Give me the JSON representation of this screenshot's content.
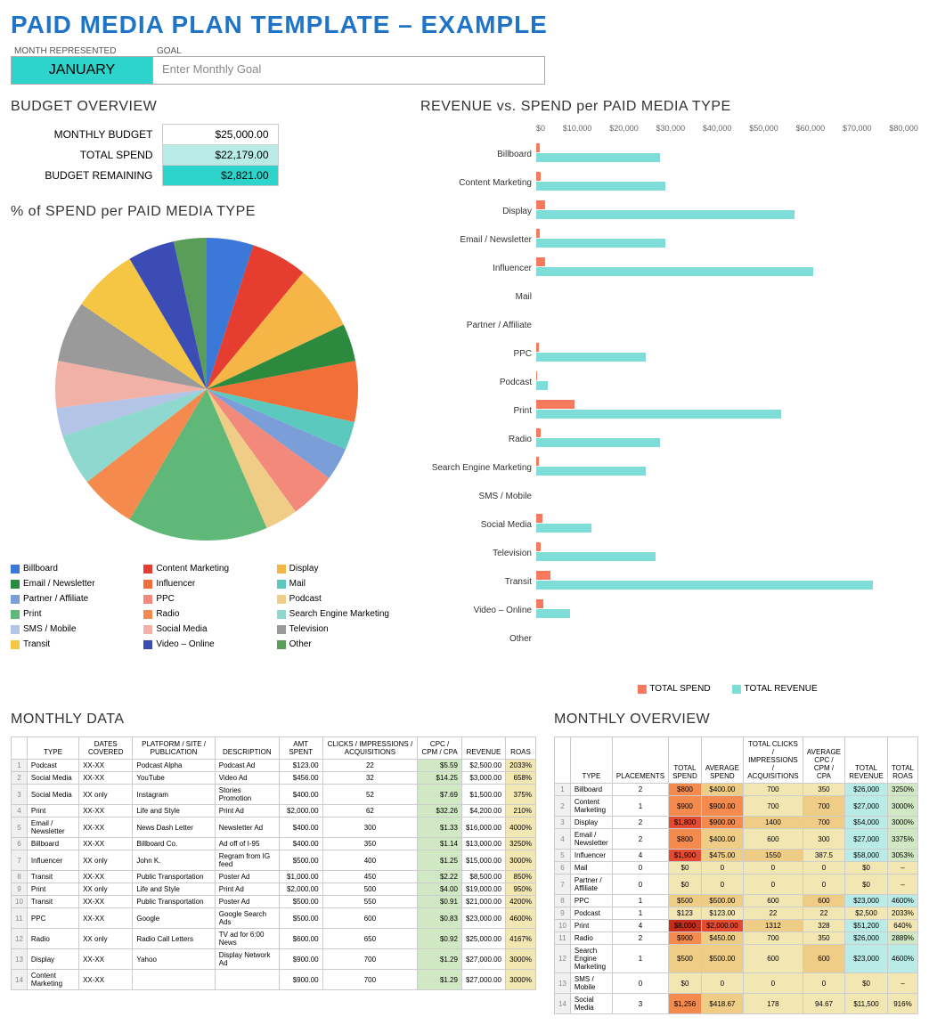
{
  "title": "PAID MEDIA PLAN TEMPLATE  –  EXAMPLE",
  "header": {
    "month_label": "MONTH REPRESENTED",
    "goal_label": "GOAL",
    "month": "JANUARY",
    "goal_placeholder": "Enter Monthly Goal"
  },
  "budget": {
    "title": "BUDGET OVERVIEW",
    "rows": [
      {
        "label": "MONTHLY BUDGET",
        "value": "$25,000.00",
        "bg": "#ffffff"
      },
      {
        "label": "TOTAL SPEND",
        "value": "$22,179.00",
        "bg": "#b9ece7"
      },
      {
        "label": "BUDGET REMAINING",
        "value": "$2,821.00",
        "bg": "#2dd4cc"
      }
    ]
  },
  "pie": {
    "title": "% of SPEND per PAID MEDIA TYPE",
    "slices": [
      {
        "label": "Billboard",
        "value": 5.0,
        "color": "#3b78d8"
      },
      {
        "label": "Content Marketing",
        "value": 6.0,
        "color": "#e53e30"
      },
      {
        "label": "Display",
        "value": 7.0,
        "color": "#f5b547"
      },
      {
        "label": "Email / Newsletter",
        "value": 4.0,
        "color": "#2b8a3e"
      },
      {
        "label": "Influencer",
        "value": 6.5,
        "color": "#f36f3a"
      },
      {
        "label": "Mail",
        "value": 3.0,
        "color": "#5cc9bf"
      },
      {
        "label": "Partner / Affiliate",
        "value": 3.5,
        "color": "#7b9ed9"
      },
      {
        "label": "PPC",
        "value": 5.0,
        "color": "#f2897a"
      },
      {
        "label": "Podcast",
        "value": 3.5,
        "color": "#f0cd87"
      },
      {
        "label": "Print",
        "value": 15.0,
        "color": "#5fb878"
      },
      {
        "label": "Radio",
        "value": 6.0,
        "color": "#f58a4e"
      },
      {
        "label": "Search Engine Marketing",
        "value": 5.5,
        "color": "#8fd8d0"
      },
      {
        "label": "SMS / Mobile",
        "value": 3.0,
        "color": "#b3c4e6"
      },
      {
        "label": "Social Media",
        "value": 5.0,
        "color": "#f2b1a6"
      },
      {
        "label": "Television",
        "value": 6.5,
        "color": "#9a9a9a"
      },
      {
        "label": "Transit",
        "value": 7.0,
        "color": "#f5c544"
      },
      {
        "label": "Video – Online",
        "value": 5.0,
        "color": "#3b4db5"
      },
      {
        "label": "Other",
        "value": 3.5,
        "color": "#5a9c5a"
      }
    ]
  },
  "revspend": {
    "title": "REVENUE vs. SPEND per PAID MEDIA TYPE",
    "xmax": 80000,
    "xticks": [
      "$0",
      "$10,000",
      "$20,000",
      "$30,000",
      "$40,000",
      "$50,000",
      "$60,000",
      "$70,000",
      "$80,000"
    ],
    "legend": [
      "TOTAL SPEND",
      "TOTAL REVENUE"
    ],
    "spend_color": "#f77a5c",
    "revenue_color": "#7eddd6",
    "rows": [
      {
        "cat": "Billboard",
        "spend": 800,
        "revenue": 26000
      },
      {
        "cat": "Content Marketing",
        "spend": 900,
        "revenue": 27000
      },
      {
        "cat": "Display",
        "spend": 1800,
        "revenue": 54000
      },
      {
        "cat": "Email / Newsletter",
        "spend": 800,
        "revenue": 27000
      },
      {
        "cat": "Influencer",
        "spend": 1900,
        "revenue": 58000
      },
      {
        "cat": "Mail",
        "spend": 0,
        "revenue": 0
      },
      {
        "cat": "Partner / Affiliate",
        "spend": 0,
        "revenue": 0
      },
      {
        "cat": "PPC",
        "spend": 500,
        "revenue": 23000
      },
      {
        "cat": "Podcast",
        "spend": 123,
        "revenue": 2500
      },
      {
        "cat": "Print",
        "spend": 8000,
        "revenue": 51200
      },
      {
        "cat": "Radio",
        "spend": 900,
        "revenue": 26000
      },
      {
        "cat": "Search Engine Marketing",
        "spend": 500,
        "revenue": 23000
      },
      {
        "cat": "SMS / Mobile",
        "spend": 0,
        "revenue": 0
      },
      {
        "cat": "Social Media",
        "spend": 1256,
        "revenue": 11500
      },
      {
        "cat": "Television",
        "spend": 1000,
        "revenue": 25000
      },
      {
        "cat": "Transit",
        "spend": 3000,
        "revenue": 70500
      },
      {
        "cat": "Video – Online",
        "spend": 1500,
        "revenue": 7000
      },
      {
        "cat": "Other",
        "spend": 0,
        "revenue": 0
      }
    ]
  },
  "monthly_data": {
    "title": "MONTHLY DATA",
    "columns": [
      "TYPE",
      "DATES COVERED",
      "PLATFORM / SITE / PUBLICATION",
      "DESCRIPTION",
      "AMT SPENT",
      "CLICKS / IMPRESSIONS / ACQUISITIONS",
      "CPC / CPM / CPA",
      "REVENUE",
      "ROAS"
    ],
    "green_bg": "#d1e8c4",
    "yellow_bg": "#f2e6b3",
    "rows": [
      [
        "Podcast",
        "XX-XX",
        "Podcast Alpha",
        "Podcast Ad",
        "$123.00",
        "22",
        "$5.59",
        "$2,500.00",
        "2033%"
      ],
      [
        "Social Media",
        "XX-XX",
        "YouTube",
        "Video Ad",
        "$456.00",
        "32",
        "$14.25",
        "$3,000.00",
        "658%"
      ],
      [
        "Social Media",
        "XX only",
        "Instagram",
        "Stories Promotion",
        "$400.00",
        "52",
        "$7.69",
        "$1,500.00",
        "375%"
      ],
      [
        "Print",
        "XX-XX",
        "Life and Style",
        "Print Ad",
        "$2,000.00",
        "62",
        "$32.26",
        "$4,200.00",
        "210%"
      ],
      [
        "Email / Newsletter",
        "XX-XX",
        "News Dash Letter",
        "Newsletter Ad",
        "$400.00",
        "300",
        "$1.33",
        "$16,000.00",
        "4000%"
      ],
      [
        "Billboard",
        "XX-XX",
        "Billboard Co.",
        "Ad off of I-95",
        "$400.00",
        "350",
        "$1.14",
        "$13,000.00",
        "3250%"
      ],
      [
        "Influencer",
        "XX only",
        "John K.",
        "Regram from IG feed",
        "$500.00",
        "400",
        "$1.25",
        "$15,000.00",
        "3000%"
      ],
      [
        "Transit",
        "XX-XX",
        "Public Transportation",
        "Poster Ad",
        "$1,000.00",
        "450",
        "$2.22",
        "$8,500.00",
        "850%"
      ],
      [
        "Print",
        "XX only",
        "Life and Style",
        "Print Ad",
        "$2,000.00",
        "500",
        "$4.00",
        "$19,000.00",
        "950%"
      ],
      [
        "Transit",
        "XX-XX",
        "Public Transportation",
        "Poster Ad",
        "$500.00",
        "550",
        "$0.91",
        "$21,000.00",
        "4200%"
      ],
      [
        "PPC",
        "XX-XX",
        "Google",
        "Google Search Ads",
        "$500.00",
        "600",
        "$0.83",
        "$23,000.00",
        "4600%"
      ],
      [
        "Radio",
        "XX only",
        "Radio Call Letters",
        "TV ad for 6:00 News",
        "$600.00",
        "650",
        "$0.92",
        "$25,000.00",
        "4167%"
      ],
      [
        "Display",
        "XX-XX",
        "Yahoo",
        "Display Network Ad",
        "$900.00",
        "700",
        "$1.29",
        "$27,000.00",
        "3000%"
      ],
      [
        "Content Marketing",
        "XX-XX",
        "",
        "",
        "$900.00",
        "700",
        "$1.29",
        "$27,000.00",
        "3000%"
      ]
    ]
  },
  "monthly_overview": {
    "title": "MONTHLY OVERVIEW",
    "columns": [
      "TYPE",
      "PLACEMENTS",
      "TOTAL SPEND",
      "AVERAGE SPEND",
      "TOTAL CLICKS / IMPRESSIONS / ACQUISITIONS",
      "AVERAGE CPC / CPM / CPA",
      "TOTAL REVENUE",
      "TOTAL ROAS"
    ],
    "rows": [
      {
        "cells": [
          "Billboard",
          "2",
          "$800",
          "$400.00",
          "700",
          "350",
          "$26,000",
          "3250%"
        ],
        "bg": [
          "",
          "",
          "#f58a4e",
          "#f0cd87",
          "#f2e6b3",
          "#f2e6b3",
          "#b9ece7",
          "#d1e8c4"
        ]
      },
      {
        "cells": [
          "Content Marketing",
          "1",
          "$900",
          "$900.00",
          "700",
          "700",
          "$27,000",
          "3000%"
        ],
        "bg": [
          "",
          "",
          "#f58a4e",
          "#f58a4e",
          "#f2e6b3",
          "#f0cd87",
          "#b9ece7",
          "#d1e8c4"
        ]
      },
      {
        "cells": [
          "Display",
          "2",
          "$1,800",
          "$900.00",
          "1400",
          "700",
          "$54,000",
          "3000%"
        ],
        "bg": [
          "",
          "",
          "#e54b31",
          "#f58a4e",
          "#f0cd87",
          "#f0cd87",
          "#b9ece7",
          "#d1e8c4"
        ]
      },
      {
        "cells": [
          "Email / Newsletter",
          "2",
          "$800",
          "$400.00",
          "600",
          "300",
          "$27,000",
          "3375%"
        ],
        "bg": [
          "",
          "",
          "#f58a4e",
          "#f0cd87",
          "#f2e6b3",
          "#f2e6b3",
          "#b9ece7",
          "#d1e8c4"
        ]
      },
      {
        "cells": [
          "Influencer",
          "4",
          "$1,900",
          "$475.00",
          "1550",
          "387.5",
          "$58,000",
          "3053%"
        ],
        "bg": [
          "",
          "",
          "#e54b31",
          "#f0cd87",
          "#f0cd87",
          "#f2e6b3",
          "#b9ece7",
          "#d1e8c4"
        ]
      },
      {
        "cells": [
          "Mail",
          "0",
          "$0",
          "0",
          "0",
          "0",
          "$0",
          "–"
        ],
        "bg": [
          "",
          "",
          "#f2e6b3",
          "#f2e6b3",
          "#f2e6b3",
          "#f2e6b3",
          "#f2e6b3",
          "#f2e6b3"
        ]
      },
      {
        "cells": [
          "Partner / Affiliate",
          "0",
          "$0",
          "0",
          "0",
          "0",
          "$0",
          "–"
        ],
        "bg": [
          "",
          "",
          "#f2e6b3",
          "#f2e6b3",
          "#f2e6b3",
          "#f2e6b3",
          "#f2e6b3",
          "#f2e6b3"
        ]
      },
      {
        "cells": [
          "PPC",
          "1",
          "$500",
          "$500.00",
          "600",
          "600",
          "$23,000",
          "4600%"
        ],
        "bg": [
          "",
          "",
          "#f0cd87",
          "#f0cd87",
          "#f2e6b3",
          "#f0cd87",
          "#b9ece7",
          "#b9ece7"
        ]
      },
      {
        "cells": [
          "Podcast",
          "1",
          "$123",
          "$123.00",
          "22",
          "22",
          "$2,500",
          "2033%"
        ],
        "bg": [
          "",
          "",
          "#f2e6b3",
          "#f2e6b3",
          "#f2e6b3",
          "#f2e6b3",
          "#f2e6b3",
          "#f2e6b3"
        ]
      },
      {
        "cells": [
          "Print",
          "4",
          "$8,000",
          "$2,000.00",
          "1312",
          "328",
          "$51,200",
          "640%"
        ],
        "bg": [
          "",
          "",
          "#c52c1c",
          "#e54b31",
          "#f0cd87",
          "#f2e6b3",
          "#b9ece7",
          "#f2e6b3"
        ]
      },
      {
        "cells": [
          "Radio",
          "2",
          "$900",
          "$450.00",
          "700",
          "350",
          "$26,000",
          "2889%"
        ],
        "bg": [
          "",
          "",
          "#f58a4e",
          "#f0cd87",
          "#f2e6b3",
          "#f2e6b3",
          "#b9ece7",
          "#d1e8c4"
        ]
      },
      {
        "cells": [
          "Search Engine Marketing",
          "1",
          "$500",
          "$500.00",
          "600",
          "600",
          "$23,000",
          "4600%"
        ],
        "bg": [
          "",
          "",
          "#f0cd87",
          "#f0cd87",
          "#f2e6b3",
          "#f0cd87",
          "#b9ece7",
          "#b9ece7"
        ]
      },
      {
        "cells": [
          "SMS / Mobile",
          "0",
          "$0",
          "0",
          "0",
          "0",
          "$0",
          "–"
        ],
        "bg": [
          "",
          "",
          "#f2e6b3",
          "#f2e6b3",
          "#f2e6b3",
          "#f2e6b3",
          "#f2e6b3",
          "#f2e6b3"
        ]
      },
      {
        "cells": [
          "Social Media",
          "3",
          "$1,256",
          "$418.67",
          "178",
          "94.67",
          "$11,500",
          "916%"
        ],
        "bg": [
          "",
          "",
          "#f58a4e",
          "#f0cd87",
          "#f2e6b3",
          "#f2e6b3",
          "#f2e6b3",
          "#f2e6b3"
        ]
      }
    ]
  }
}
